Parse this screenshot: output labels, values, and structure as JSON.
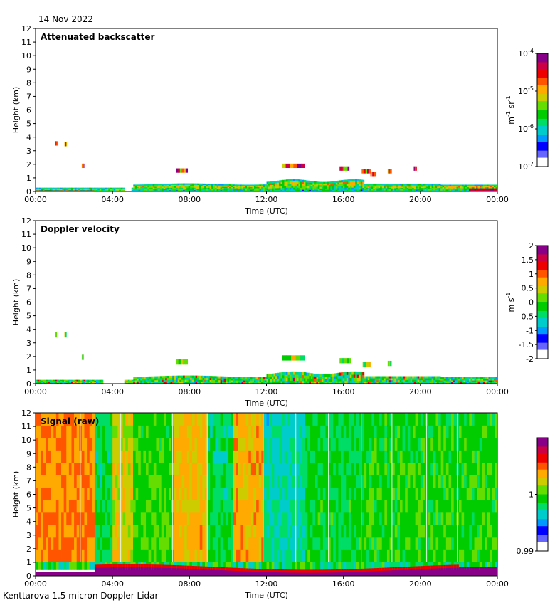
{
  "date": "14 Nov 2022",
  "footer": "Kenttarova 1.5 micron Doppler Lidar",
  "colors": {
    "jet": [
      "#ffffff",
      "#6666ff",
      "#0000ff",
      "#0099ff",
      "#00cccc",
      "#00dd66",
      "#00cc00",
      "#66dd00",
      "#cccc00",
      "#ffaa00",
      "#ff5500",
      "#ee0000",
      "#cc0044",
      "#880088"
    ]
  },
  "chart_data": [
    {
      "type": "heatmap",
      "title": "Attenuated backscatter",
      "xlabel": "Time (UTC)",
      "ylabel": "Height (km)",
      "xlim": [
        0,
        24
      ],
      "ylim": [
        0,
        12
      ],
      "x_ticks": [
        "00:00",
        "04:00",
        "08:00",
        "12:00",
        "16:00",
        "20:00",
        "00:00"
      ],
      "y_ticks": [
        "0",
        "1",
        "2",
        "3",
        "4",
        "5",
        "6",
        "7",
        "8",
        "9",
        "10",
        "11",
        "12"
      ],
      "colorbar": {
        "scale": "log",
        "range": [
          1e-07,
          0.0001
        ],
        "unit_base": "m",
        "unit_exp1": "-1",
        "unit_mid": " sr",
        "unit_exp2": "-1",
        "ticks": [
          {
            "v": 0.0001,
            "base": "10",
            "exp": "-4"
          },
          {
            "v": 1e-05,
            "base": "10",
            "exp": "-5"
          },
          {
            "v": 1e-06,
            "base": "10",
            "exp": "-6"
          },
          {
            "v": 1e-07,
            "base": "10",
            "exp": "-7"
          }
        ]
      }
    },
    {
      "type": "heatmap",
      "title": "Doppler velocity",
      "xlabel": "Time (UTC)",
      "ylabel": "Height (km)",
      "xlim": [
        0,
        24
      ],
      "ylim": [
        0,
        12
      ],
      "x_ticks": [
        "00:00",
        "04:00",
        "08:00",
        "12:00",
        "16:00",
        "20:00",
        "00:00"
      ],
      "y_ticks": [
        "0",
        "1",
        "2",
        "3",
        "4",
        "5",
        "6",
        "7",
        "8",
        "9",
        "10",
        "11",
        "12"
      ],
      "colorbar": {
        "scale": "linear",
        "range": [
          -2,
          2
        ],
        "unit_base": "m s",
        "unit_exp1": "-1",
        "unit_mid": "",
        "unit_exp2": "",
        "ticks": [
          {
            "v": 2,
            "base": "2",
            "exp": ""
          },
          {
            "v": 1.5,
            "base": "1.5",
            "exp": ""
          },
          {
            "v": 1,
            "base": "1",
            "exp": ""
          },
          {
            "v": 0.5,
            "base": "0.5",
            "exp": ""
          },
          {
            "v": 0,
            "base": "0",
            "exp": ""
          },
          {
            "v": -0.5,
            "base": "-0.5",
            "exp": ""
          },
          {
            "v": -1,
            "base": "-1",
            "exp": ""
          },
          {
            "v": -1.5,
            "base": "-1.5",
            "exp": ""
          },
          {
            "v": -2,
            "base": "-2",
            "exp": ""
          }
        ]
      }
    },
    {
      "type": "heatmap",
      "title": "Signal (raw)",
      "xlabel": "Time (UTC)",
      "ylabel": "Height (km)",
      "xlim": [
        0,
        24
      ],
      "ylim": [
        0,
        12
      ],
      "x_ticks": [
        "00:00",
        "04:00",
        "08:00",
        "12:00",
        "16:00",
        "20:00",
        "00:00"
      ],
      "y_ticks": [
        "0",
        "1",
        "2",
        "3",
        "4",
        "5",
        "6",
        "7",
        "8",
        "9",
        "10",
        "11",
        "12"
      ],
      "colorbar": {
        "scale": "linear",
        "range": [
          0.99,
          1.01
        ],
        "unit_base": "",
        "unit_exp1": "",
        "unit_mid": "",
        "unit_exp2": "",
        "ticks": [
          {
            "v": 1,
            "base": "1",
            "exp": ""
          },
          {
            "v": 0.99,
            "base": "0.99",
            "exp": ""
          }
        ]
      }
    }
  ]
}
